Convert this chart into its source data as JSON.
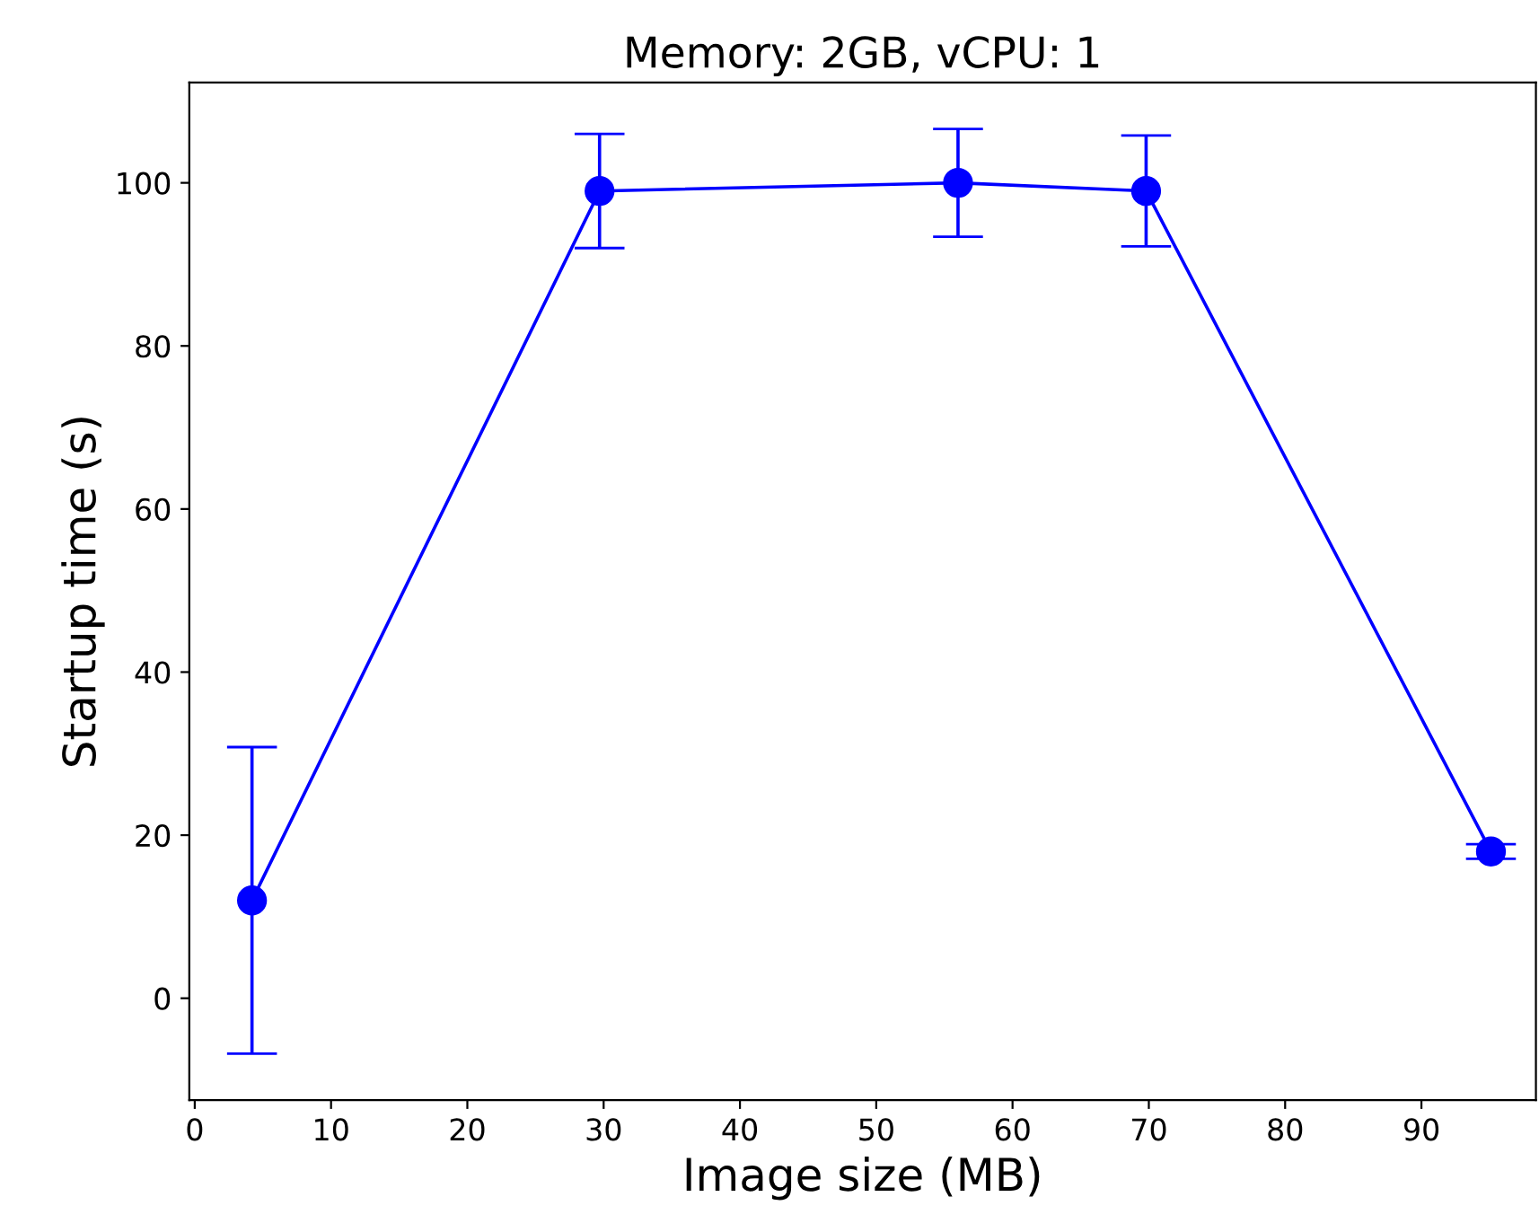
{
  "chart_data": {
    "type": "line",
    "title": "Memory: 2GB, vCPU: 1",
    "xlabel": "Image size (MB)",
    "ylabel": "Startup time (s)",
    "x": [
      4.2,
      29.7,
      56.0,
      69.8,
      95.1
    ],
    "series": [
      {
        "color": "#0000ff",
        "values": [
          12,
          99,
          100,
          99,
          18
        ],
        "errors": [
          18.8,
          7,
          6.6,
          6.8,
          0.9
        ]
      }
    ],
    "xlim": [
      -0.4,
      98.4
    ],
    "ylim": [
      -12.5,
      112.3
    ],
    "xticks": [
      0,
      10,
      20,
      30,
      40,
      50,
      60,
      70,
      80,
      90
    ],
    "yticks": [
      0,
      20,
      40,
      60,
      80,
      100
    ],
    "grid": false,
    "legend": false,
    "marker": "circle",
    "line_style": "solid"
  }
}
